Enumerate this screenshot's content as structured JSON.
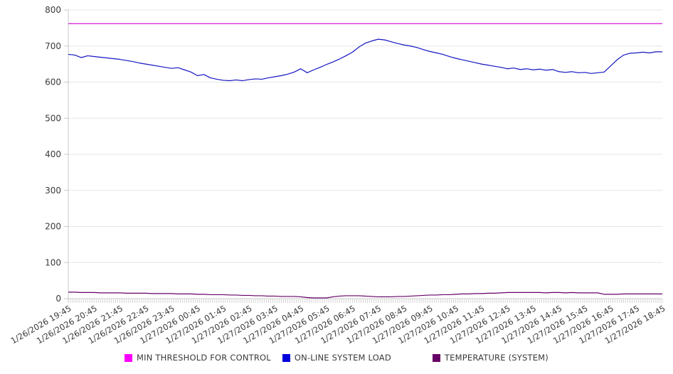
{
  "chart_data": {
    "type": "line",
    "title": "",
    "xlabel": "",
    "ylabel": "",
    "ylim": [
      0,
      800
    ],
    "yticks": [
      0,
      100,
      200,
      300,
      400,
      500,
      600,
      700,
      800
    ],
    "grid": "horizontal",
    "legend_position": "bottom",
    "points_per_label": 4,
    "x_labels": [
      "1/26/2026 19:45",
      "1/26/2026 20:45",
      "1/26/2026 21:45",
      "1/26/2026 22:45",
      "1/26/2026 23:45",
      "1/27/2026 00:45",
      "1/27/2026 01:45",
      "1/27/2026 02:45",
      "1/27/2026 03:45",
      "1/27/2026 04:45",
      "1/27/2026 05:45",
      "1/27/2026 06:45",
      "1/27/2026 07:45",
      "1/27/2026 08:45",
      "1/27/2026 09:45",
      "1/27/2026 10:45",
      "1/27/2026 11:45",
      "1/27/2026 12:45",
      "1/27/2026 13:45",
      "1/27/2026 14:45",
      "1/27/2026 15:45",
      "1/27/2026 16:45",
      "1/27/2026 17:45",
      "1/27/2026 18:45"
    ],
    "series": [
      {
        "name": "MIN THRESHOLD FOR CONTROL",
        "color": "#d816d8",
        "swatch_color": "#ff00ff",
        "constant": 762
      },
      {
        "name": "ON-LINE SYSTEM LOAD",
        "color": "#1515c3",
        "swatch_color": "#0000dd",
        "values": [
          677,
          675,
          668,
          673,
          671,
          669,
          667,
          665,
          663,
          660,
          657,
          653,
          650,
          647,
          644,
          641,
          638,
          640,
          634,
          628,
          618,
          621,
          612,
          608,
          605,
          604,
          606,
          604,
          607,
          609,
          608,
          612,
          615,
          618,
          622,
          628,
          637,
          626,
          634,
          641,
          649,
          656,
          664,
          673,
          683,
          697,
          708,
          714,
          719,
          717,
          712,
          707,
          703,
          700,
          696,
          690,
          685,
          681,
          677,
          671,
          666,
          662,
          658,
          654,
          650,
          647,
          644,
          641,
          637,
          639,
          635,
          637,
          634,
          636,
          633,
          635,
          629,
          627,
          629,
          626,
          627,
          624,
          626,
          628,
          645,
          662,
          675,
          680,
          681,
          683,
          681,
          684,
          684
        ]
      },
      {
        "name": "TEMPERATURE (SYSTEM)",
        "color": "#660066",
        "swatch_color": "#660066",
        "values": [
          18,
          18,
          17,
          17,
          17,
          16,
          16,
          16,
          16,
          15,
          15,
          15,
          15,
          14,
          14,
          14,
          14,
          13,
          13,
          13,
          12,
          12,
          11,
          11,
          11,
          10,
          10,
          9,
          9,
          8,
          8,
          7,
          7,
          6,
          6,
          6,
          5,
          3,
          2,
          2,
          2,
          5,
          7,
          8,
          8,
          8,
          7,
          6,
          5,
          5,
          5,
          6,
          6,
          7,
          8,
          9,
          10,
          10,
          11,
          11,
          12,
          13,
          13,
          14,
          14,
          15,
          15,
          16,
          17,
          17,
          17,
          17,
          17,
          17,
          16,
          17,
          17,
          16,
          17,
          16,
          16,
          16,
          16,
          12,
          12,
          12,
          13,
          13,
          13,
          13,
          13,
          13,
          13
        ]
      }
    ],
    "style": {
      "grid_color": "#e5e5e5",
      "axis_color": "#c8c8c8",
      "tick_color": "#c9c9c9",
      "label_color": "#3a3a3a"
    }
  }
}
